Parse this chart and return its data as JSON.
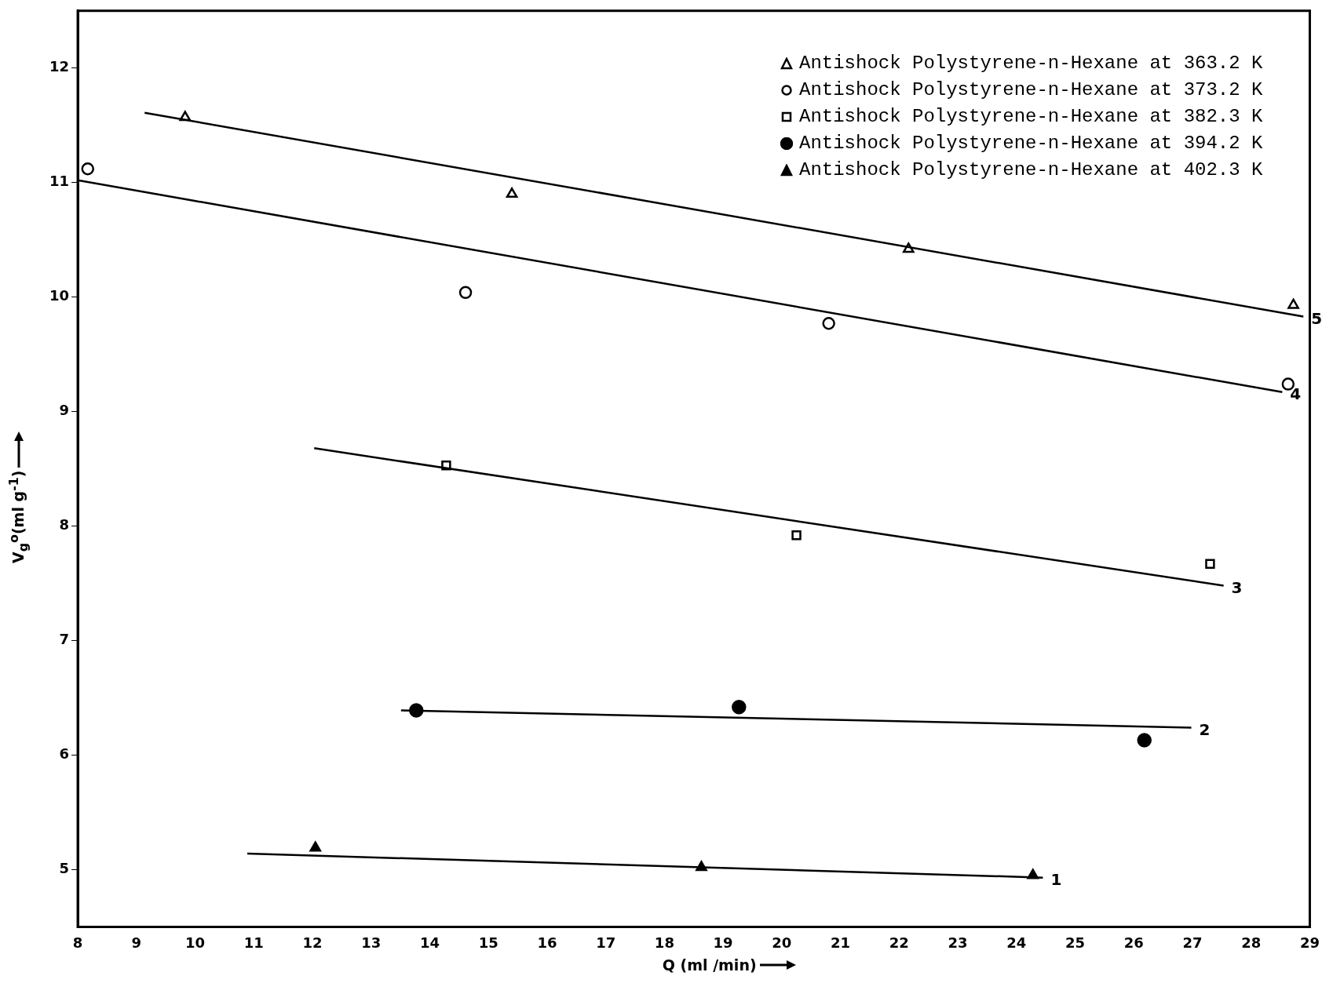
{
  "chart_data": {
    "type": "scatter",
    "xlabel": "Q (ml /min)",
    "ylabel": "V$_{g}$$^{o}$(ml g$^{-1}$)",
    "xlim": [
      8,
      29
    ],
    "xticks": [
      8,
      9,
      10,
      11,
      12,
      13,
      14,
      15,
      16,
      17,
      18,
      19,
      20,
      21,
      22,
      23,
      24,
      25,
      26,
      27,
      28,
      29
    ],
    "ylim": [
      4.5,
      12.5
    ],
    "yticks": [
      5,
      6,
      7,
      8,
      9,
      10,
      11,
      12
    ],
    "grid": false,
    "legend": "top right",
    "series": [
      {
        "name": "Antishock Polystyrene-n-Hexane at 363.2 K",
        "marker": "triangle",
        "color": "#000000",
        "x": [
          9.83,
          15.4,
          22.16,
          28.72
        ],
        "values": [
          11.57,
          10.9,
          10.42,
          9.93
        ]
      },
      {
        "name": "Antishock Polystyrene-n-Hexane at 373.2 K",
        "marker": "circle",
        "color": "#000000",
        "x": [
          8.17,
          14.61,
          20.8,
          28.63
        ],
        "values": [
          11.12,
          10.04,
          9.77,
          9.24
        ]
      },
      {
        "name": "Antishock Polystyrene-n-Hexane at 382.3 K",
        "marker": "square",
        "color": "#000000",
        "x": [
          14.28,
          20.25,
          27.3
        ],
        "values": [
          8.53,
          7.92,
          7.67
        ]
      },
      {
        "name": "Antishock Polystyrene-n-Hexane at 394.2 K",
        "marker": "circle",
        "color": "#000000",
        "x": [
          13.77,
          19.27,
          26.18
        ],
        "values": [
          6.39,
          6.42,
          6.13
        ]
      },
      {
        "name": "Antishock Polystyrene-n-Hexane at 402.3 K",
        "marker": "triangle",
        "color": "#000000",
        "x": [
          12.05,
          18.63,
          24.28
        ],
        "values": [
          5.19,
          5.02,
          4.95
        ]
      },
      {
        "type": "line",
        "marker": "none",
        "color": "#000000",
        "x": [
          9.14,
          28.89
        ],
        "values": [
          11.61,
          9.83
        ]
      },
      {
        "type": "line",
        "marker": "none",
        "color": "#000000",
        "x": [
          8,
          28.53
        ],
        "values": [
          11.02,
          9.17
        ]
      },
      {
        "type": "line",
        "marker": "none",
        "color": "#000000",
        "x": [
          12.03,
          27.53
        ],
        "values": [
          8.68,
          7.48
        ]
      },
      {
        "type": "line",
        "marker": "none",
        "color": "#000000",
        "x": [
          13.51,
          26.98
        ],
        "values": [
          6.39,
          6.24
        ]
      },
      {
        "type": "line",
        "marker": "none",
        "color": "#000000",
        "x": [
          10.89,
          24.45
        ],
        "values": [
          5.14,
          4.93
        ]
      }
    ],
    "annotations": [
      {
        "text": "5",
        "x": 28.89,
        "y": 9.83
      },
      {
        "text": "4",
        "x": 28.53,
        "y": 9.17
      },
      {
        "text": "3",
        "x": 27.53,
        "y": 7.48
      },
      {
        "text": "2",
        "x": 26.98,
        "y": 6.24
      },
      {
        "text": "1",
        "x": 24.45,
        "y": 4.93
      }
    ]
  }
}
